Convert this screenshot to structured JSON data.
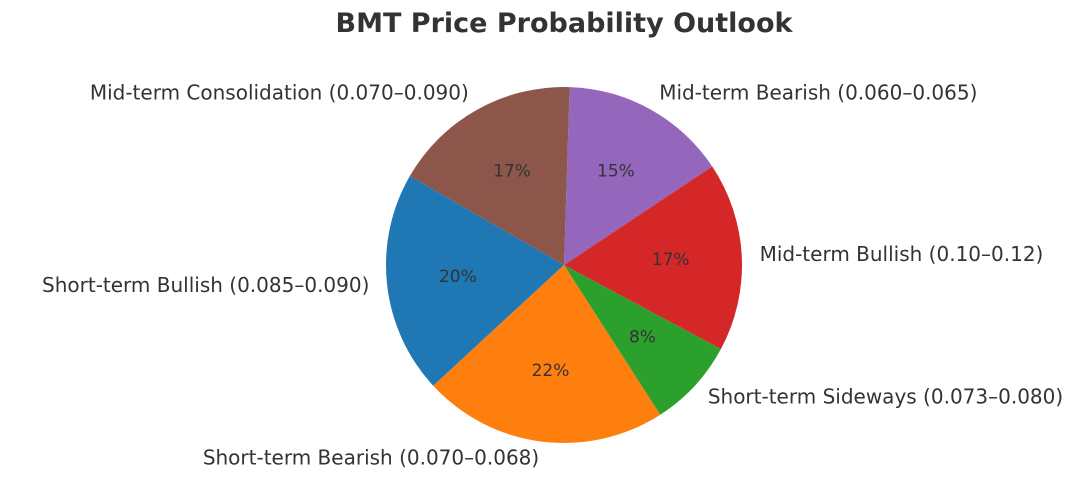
{
  "chart_data": {
    "type": "pie",
    "title": "BMT Price Probability Outlook",
    "start_angle_deg": 150,
    "direction": "counterclockwise",
    "slices": [
      {
        "label": "Short-term Bullish (0.085–0.090)",
        "value": 20,
        "pct_label": "20%",
        "color": "#1f77b4"
      },
      {
        "label": "Short-term Bearish (0.070–0.068)",
        "value": 22,
        "pct_label": "22%",
        "color": "#ff7f0e"
      },
      {
        "label": "Short-term Sideways (0.073–0.080)",
        "value": 8,
        "pct_label": "8%",
        "color": "#2ca02c"
      },
      {
        "label": "Mid-term Bullish (0.10–0.12)",
        "value": 17,
        "pct_label": "17%",
        "color": "#d62728"
      },
      {
        "label": "Mid-term Bearish (0.060–0.065)",
        "value": 15,
        "pct_label": "15%",
        "color": "#9467bd"
      },
      {
        "label": "Mid-term Consolidation (0.070–0.090)",
        "value": 17,
        "pct_label": "17%",
        "color": "#8c564b"
      }
    ]
  }
}
